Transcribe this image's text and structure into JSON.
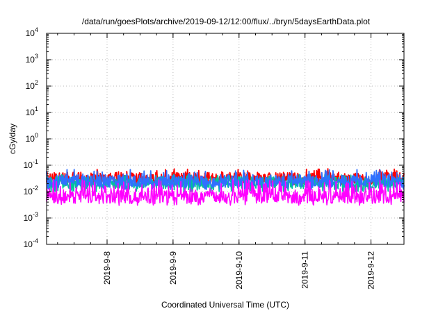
{
  "chart_data": {
    "type": "line",
    "title": "/data/run/goesPlots/archive/2019-09-12/12:00/flux/../bryn/5daysEarthData.plot",
    "xlabel": "Coordinated Universal Time (UTC)",
    "ylabel": "cGy/day",
    "y_scale": "log",
    "ylim": [
      0.0001,
      10000
    ],
    "xlim": [
      "2019-09-07 02:00",
      "2019-09-12 12:00"
    ],
    "grid": true,
    "y_ticks": [
      {
        "value": 0.0001,
        "base": "10",
        "exp": "-4"
      },
      {
        "value": 0.001,
        "base": "10",
        "exp": "-3"
      },
      {
        "value": 0.01,
        "base": "10",
        "exp": "-2"
      },
      {
        "value": 0.1,
        "base": "10",
        "exp": "-1"
      },
      {
        "value": 1,
        "base": "10",
        "exp": "0"
      },
      {
        "value": 10,
        "base": "10",
        "exp": "1"
      },
      {
        "value": 100,
        "base": "10",
        "exp": "2"
      },
      {
        "value": 1000,
        "base": "10",
        "exp": "3"
      },
      {
        "value": 10000,
        "base": "10",
        "exp": "4"
      }
    ],
    "x_ticks": [
      {
        "value": "2019-09-08",
        "label": "2019-9-8"
      },
      {
        "value": "2019-09-09",
        "label": "2019-9-9"
      },
      {
        "value": "2019-09-10",
        "label": "2019-9-10"
      },
      {
        "value": "2019-09-11",
        "label": "2019-9-11"
      },
      {
        "value": "2019-09-12",
        "label": "2019-9-12"
      }
    ],
    "series": [
      {
        "color": "#ff0000",
        "typical": 0.032,
        "min": 0.018,
        "max": 0.075
      },
      {
        "color": "#00c0a0",
        "typical": 0.022,
        "min": 0.01,
        "max": 0.045
      },
      {
        "color": "#3070ff",
        "typical": 0.026,
        "min": 0.012,
        "max": 0.07
      },
      {
        "color": "#ff00ff",
        "typical": 0.006,
        "min": 0.003,
        "max": 0.03
      }
    ]
  }
}
